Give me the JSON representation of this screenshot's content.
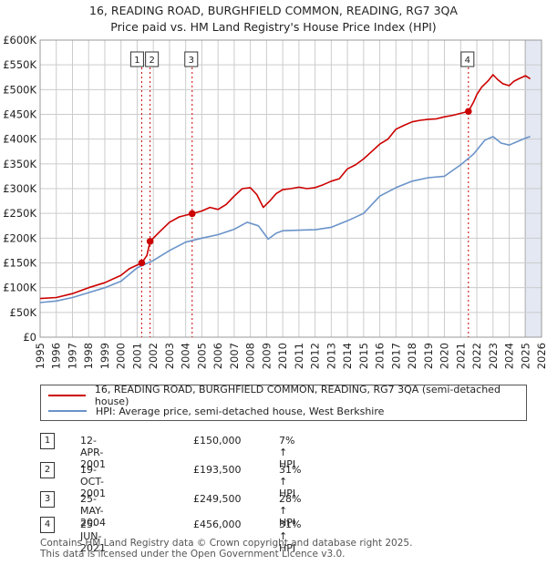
{
  "title_line1": "16, READING ROAD, BURGHFIELD COMMON, READING, RG7 3QA",
  "title_line2": "Price paid vs. HM Land Registry's House Price Index (HPI)",
  "colors": {
    "property": "#cc0000",
    "hpi": "#6a93c9",
    "grid": "#cccccc",
    "future": "#e3e8f2"
  },
  "legend": {
    "property": "16, READING ROAD, BURGHFIELD COMMON, READING, RG7 3QA (semi-detached house)",
    "hpi": "HPI: Average price, semi-detached house, West Berkshire"
  },
  "transactions": [
    {
      "id": "1",
      "date": "12-APR-2001",
      "price": "£150,000",
      "hpi": "7% ↑ HPI"
    },
    {
      "id": "2",
      "date": "19-OCT-2001",
      "price": "£193,500",
      "hpi": "31% ↑ HPI"
    },
    {
      "id": "3",
      "date": "25-MAY-2004",
      "price": "£249,500",
      "hpi": "28% ↑ HPI"
    },
    {
      "id": "4",
      "date": "25-JUN-2021",
      "price": "£456,000",
      "hpi": "31% ↑ HPI"
    }
  ],
  "footer_line1": "Contains HM Land Registry data © Crown copyright and database right 2025.",
  "footer_line2": "This data is licensed under the Open Government Licence v3.0.",
  "chart_data": {
    "type": "line",
    "title": "16, READING ROAD, BURGHFIELD COMMON, READING, RG7 3QA",
    "subtitle": "Price paid vs. HM Land Registry's House Price Index (HPI)",
    "xlabel": "",
    "ylabel": "",
    "xlim": [
      1995,
      2026
    ],
    "ylim": [
      0,
      600000
    ],
    "ytick_values": [
      0,
      50000,
      100000,
      150000,
      200000,
      250000,
      300000,
      350000,
      400000,
      450000,
      500000,
      550000,
      600000
    ],
    "ytick_labels": [
      "£0",
      "£50K",
      "£100K",
      "£150K",
      "£200K",
      "£250K",
      "£300K",
      "£350K",
      "£400K",
      "£450K",
      "£500K",
      "£550K",
      "£600K"
    ],
    "xtick_labels": [
      "1995",
      "1996",
      "1997",
      "1998",
      "1999",
      "2000",
      "2001",
      "2002",
      "2003",
      "2004",
      "2005",
      "2006",
      "2007",
      "2008",
      "2009",
      "2010",
      "2011",
      "2012",
      "2013",
      "2014",
      "2015",
      "2016",
      "2017",
      "2018",
      "2019",
      "2020",
      "2021",
      "2022",
      "2023",
      "2024",
      "2025",
      "2026"
    ],
    "grid": true,
    "future_shade_from": 2025.0,
    "series": [
      {
        "name": "16, READING ROAD, BURGHFIELD COMMON, READING, RG7 3QA (semi-detached house)",
        "x": [
          1995,
          1996,
          1997,
          1998,
          1999,
          2000,
          2000.5,
          2001.28,
          2001.6,
          2001.8,
          2002.3,
          2003,
          2003.6,
          2004.4,
          2005,
          2005.5,
          2006,
          2006.5,
          2007,
          2007.5,
          2008,
          2008.4,
          2008.8,
          2009.2,
          2009.6,
          2010,
          2010.5,
          2011,
          2011.5,
          2012,
          2012.5,
          2013,
          2013.5,
          2014,
          2014.5,
          2015,
          2015.5,
          2016,
          2016.5,
          2017,
          2017.5,
          2018,
          2018.5,
          2019,
          2019.5,
          2020,
          2020.5,
          2021,
          2021.48,
          2021.8,
          2022,
          2022.3,
          2022.7,
          2023,
          2023.3,
          2023.6,
          2024,
          2024.3,
          2024.6,
          2025,
          2025.3
        ],
        "values": [
          78000,
          80000,
          88000,
          100000,
          110000,
          125000,
          138000,
          150000,
          165000,
          193500,
          210000,
          232000,
          243000,
          249500,
          255000,
          262000,
          258000,
          268000,
          285000,
          300000,
          302000,
          288000,
          262000,
          275000,
          290000,
          298000,
          300000,
          303000,
          300000,
          302000,
          308000,
          315000,
          320000,
          340000,
          348000,
          360000,
          375000,
          390000,
          400000,
          420000,
          428000,
          435000,
          438000,
          440000,
          441000,
          445000,
          448000,
          452000,
          456000,
          475000,
          490000,
          505000,
          518000,
          530000,
          520000,
          512000,
          508000,
          517000,
          522000,
          528000,
          522000
        ]
      },
      {
        "name": "HPI: Average price, semi-detached house, West Berkshire",
        "x": [
          1995,
          1996,
          1997,
          1998,
          1999,
          2000,
          2001,
          2002,
          2003,
          2004,
          2005,
          2006,
          2007,
          2007.8,
          2008.5,
          2009.1,
          2009.6,
          2010,
          2011,
          2012,
          2013,
          2014,
          2015,
          2016,
          2017,
          2018,
          2019,
          2020,
          2021,
          2021.8,
          2022.5,
          2023,
          2023.5,
          2024,
          2024.5,
          2025,
          2025.3
        ],
        "values": [
          70000,
          73000,
          80000,
          90000,
          100000,
          113000,
          140000,
          155000,
          175000,
          192000,
          200000,
          207000,
          218000,
          232000,
          225000,
          198000,
          210000,
          215000,
          216000,
          217000,
          222000,
          235000,
          250000,
          285000,
          302000,
          315000,
          322000,
          325000,
          348000,
          370000,
          398000,
          405000,
          392000,
          388000,
          395000,
          402000,
          405000
        ]
      }
    ],
    "markers": [
      {
        "label": "1",
        "x": 2001.28,
        "value": 150000
      },
      {
        "label": "2",
        "x": 2001.8,
        "value": 193500
      },
      {
        "label": "3",
        "x": 2004.4,
        "value": 249500
      },
      {
        "label": "4",
        "x": 2021.48,
        "value": 456000
      }
    ]
  }
}
